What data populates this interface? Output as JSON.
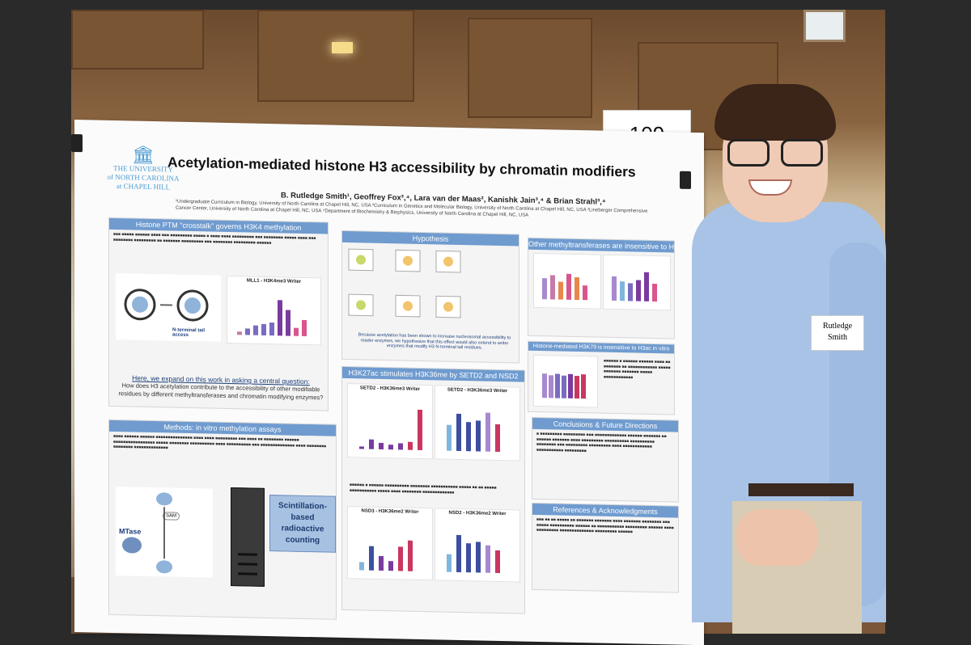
{
  "poster": {
    "logo_line1": "THE UNIVERSITY",
    "logo_line2": "of NORTH CAROLINA",
    "logo_line3": "at CHAPEL HILL",
    "title": "Acetylation-mediated histone H3 accessibility by chromatin modifiers",
    "authors": "B. Rutledge Smith¹, Geoffrey Fox²,⁴, Lara van der Maas², Kanishk Jain³,⁴ & Brian Strahl³,⁴",
    "affiliations": "¹Undergraduate Curriculum in Biology, University of North Carolina at Chapel Hill, NC, USA ²Curriculum in Genetics and Molecular Biology, University of North Carolina at Chapel Hill, NC, USA ³Lineberger Comprehensive Cancer Center, University of North Carolina at Chapel Hill, NC, USA ⁴Department of Biochemistry & Biophysics, University of North Carolina at Chapel Hill, NC, USA",
    "sections": {
      "crosstalk_head": "Histone PTM \"crosstalk\" governs H3K4 methylation",
      "hypothesis_head": "Hypothesis",
      "other_head": "Other methyltransferases are insensitive to H3ac",
      "h3k27ac_head": "H3K27ac stimulates H3K36me by SETD2 and NSD2",
      "h3k4_head": "Histone-mediated H3K79 is insensitive to H3ac in vitro",
      "methods_head": "Methods: in vitro methylation assays",
      "conclusions_head": "Conclusions & Future Directions",
      "refs_head": "References & Acknowledgments"
    },
    "question_intro": "Here, we expand on this work in asking a central question:",
    "question": "How does H3 acetylation contribute to the accessibility of other modifiable residues by different methyltransferases and chromatin modifying enzymes?",
    "hypothesis_text": "Because acetylation has been shown to increase nucleosomal accessibility to reader enzymes, we hypothesize that this effect would also extend to writer enzymes that modify H3 N-terminal tail residues.",
    "chart_labels": {
      "mll1": "MLL1 - H3K4me3 Writer",
      "setd2": "SETD2 - H3K36me3 Writer",
      "setd2b": "SETD2 - H3K36me3 Writer",
      "nsd3": "NSD3 - H3K36me2 Writer",
      "nsd2": "NSD2 - H3K36me2 Writer",
      "methods_tail": "N-terminal tail access"
    },
    "mtase_label": "MTase",
    "sam_label": "SAM",
    "scint_label": "Scintillation-based radioactive counting"
  },
  "booth_number": "109",
  "name_tag": {
    "line1": "Rutledge",
    "line2": "Smith"
  }
}
